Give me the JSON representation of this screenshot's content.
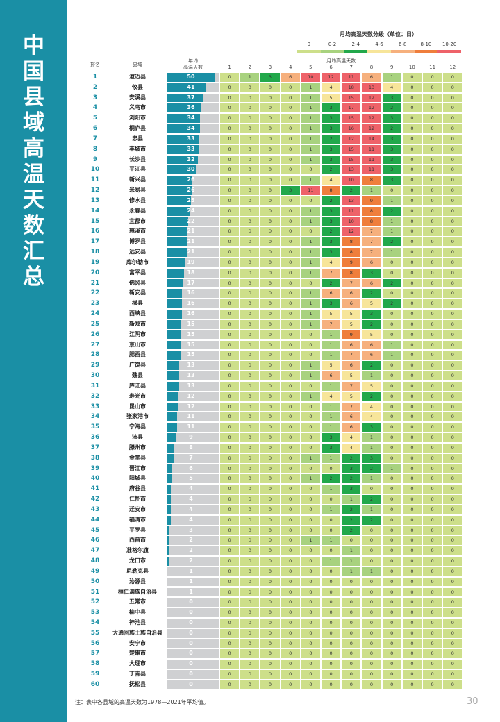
{
  "sidebar_title": "中国县域高温天数汇总",
  "legend": {
    "title": "月均高温天数分级（单位：日）",
    "grades": [
      {
        "label": "0",
        "color": "#cddf8a"
      },
      {
        "label": "0-2",
        "color": "#a8d27f"
      },
      {
        "label": "2-4",
        "color": "#22a84b"
      },
      {
        "label": "4-6",
        "color": "#f7e59a"
      },
      {
        "label": "6-8",
        "color": "#f6b07d"
      },
      {
        "label": "8-10",
        "color": "#ef7e3c"
      },
      {
        "label": "10-20",
        "color": "#ee6269"
      }
    ]
  },
  "table": {
    "headers": {
      "rank": "排名",
      "county": "县域",
      "annual": [
        "年均",
        "高温天数"
      ],
      "monthly": "月均高温天数",
      "months": [
        1,
        2,
        3,
        4,
        5,
        6,
        7,
        8,
        9,
        10,
        11,
        12
      ]
    },
    "rows": [
      {
        "rank": 1,
        "county": "澄迈县",
        "annual": 50,
        "months": [
          0,
          1,
          3,
          6,
          10,
          12,
          11,
          6,
          1,
          0,
          0,
          0
        ]
      },
      {
        "rank": 2,
        "county": "攸县",
        "annual": 41,
        "months": [
          0,
          0,
          0,
          0,
          1,
          4,
          18,
          13,
          4,
          0,
          0,
          0
        ]
      },
      {
        "rank": 3,
        "county": "安溪县",
        "annual": 37,
        "months": [
          0,
          0,
          0,
          0,
          1,
          5,
          15,
          12,
          3,
          0,
          0,
          0
        ]
      },
      {
        "rank": 4,
        "county": "义乌市",
        "annual": 36,
        "months": [
          0,
          0,
          0,
          0,
          1,
          3,
          17,
          12,
          2,
          0,
          0,
          0
        ]
      },
      {
        "rank": 5,
        "county": "浏阳市",
        "annual": 34,
        "months": [
          0,
          0,
          0,
          0,
          1,
          3,
          15,
          12,
          3,
          0,
          0,
          0
        ]
      },
      {
        "rank": 6,
        "county": "桐庐县",
        "annual": 34,
        "months": [
          0,
          0,
          0,
          0,
          1,
          3,
          16,
          12,
          2,
          0,
          0,
          0
        ]
      },
      {
        "rank": 7,
        "county": "忠县",
        "annual": 33,
        "months": [
          0,
          0,
          0,
          0,
          1,
          2,
          12,
          14,
          3,
          0,
          0,
          0
        ]
      },
      {
        "rank": 8,
        "county": "丰城市",
        "annual": 33,
        "months": [
          0,
          0,
          0,
          0,
          1,
          3,
          15,
          11,
          3,
          0,
          0,
          0
        ]
      },
      {
        "rank": 9,
        "county": "长沙县",
        "annual": 32,
        "months": [
          0,
          0,
          0,
          0,
          1,
          3,
          15,
          11,
          3,
          0,
          0,
          0
        ]
      },
      {
        "rank": 10,
        "county": "平江县",
        "annual": 30,
        "months": [
          0,
          0,
          0,
          0,
          0,
          2,
          13,
          11,
          3,
          0,
          0,
          0
        ]
      },
      {
        "rank": 11,
        "county": "新兴县",
        "annual": 26,
        "months": [
          0,
          0,
          0,
          0,
          1,
          4,
          10,
          8,
          3,
          0,
          0,
          0
        ]
      },
      {
        "rank": 12,
        "county": "米易县",
        "annual": 26,
        "months": [
          0,
          0,
          0,
          3,
          11,
          8,
          2,
          1,
          0,
          0,
          0,
          0
        ]
      },
      {
        "rank": 13,
        "county": "修水县",
        "annual": 25,
        "months": [
          0,
          0,
          0,
          0,
          0,
          2,
          13,
          9,
          1,
          0,
          0,
          0
        ]
      },
      {
        "rank": 14,
        "county": "永春县",
        "annual": 24,
        "months": [
          0,
          0,
          0,
          0,
          1,
          3,
          11,
          8,
          2,
          0,
          0,
          0
        ]
      },
      {
        "rank": 15,
        "county": "宜都市",
        "annual": 22,
        "months": [
          0,
          0,
          0,
          0,
          1,
          3,
          10,
          8,
          1,
          0,
          0,
          0
        ]
      },
      {
        "rank": 16,
        "county": "慈溪市",
        "annual": 21,
        "months": [
          0,
          0,
          0,
          0,
          0,
          2,
          12,
          7,
          1,
          0,
          0,
          0
        ]
      },
      {
        "rank": 17,
        "county": "博罗县",
        "annual": 21,
        "months": [
          0,
          0,
          0,
          0,
          1,
          3,
          8,
          7,
          2,
          0,
          0,
          0
        ]
      },
      {
        "rank": 18,
        "county": "远安县",
        "annual": 21,
        "months": [
          0,
          0,
          0,
          0,
          1,
          3,
          8,
          7,
          1,
          0,
          0,
          0
        ]
      },
      {
        "rank": 19,
        "county": "库尔勒市",
        "annual": 19,
        "months": [
          0,
          0,
          0,
          0,
          1,
          4,
          9,
          6,
          0,
          0,
          0,
          0
        ]
      },
      {
        "rank": 20,
        "county": "富平县",
        "annual": 18,
        "months": [
          0,
          0,
          0,
          0,
          1,
          7,
          8,
          3,
          0,
          0,
          0,
          0
        ]
      },
      {
        "rank": 21,
        "county": "佛冈县",
        "annual": 17,
        "months": [
          0,
          0,
          0,
          0,
          0,
          2,
          7,
          6,
          2,
          0,
          0,
          0
        ]
      },
      {
        "rank": 22,
        "county": "新安县",
        "annual": 16,
        "months": [
          0,
          0,
          0,
          0,
          1,
          6,
          6,
          2,
          0,
          0,
          0,
          0
        ]
      },
      {
        "rank": 23,
        "county": "横县",
        "annual": 16,
        "months": [
          0,
          0,
          0,
          0,
          1,
          3,
          6,
          5,
          2,
          0,
          0,
          0
        ]
      },
      {
        "rank": 24,
        "county": "西峡县",
        "annual": 16,
        "months": [
          0,
          0,
          0,
          0,
          1,
          5,
          5,
          3,
          0,
          0,
          0,
          0
        ]
      },
      {
        "rank": 25,
        "county": "新郑市",
        "annual": 15,
        "months": [
          0,
          0,
          0,
          0,
          1,
          7,
          5,
          2,
          0,
          0,
          0,
          0
        ]
      },
      {
        "rank": 26,
        "county": "江阴市",
        "annual": 15,
        "months": [
          0,
          0,
          0,
          0,
          0,
          1,
          9,
          5,
          0,
          0,
          0,
          0
        ]
      },
      {
        "rank": 27,
        "county": "京山市",
        "annual": 15,
        "months": [
          0,
          0,
          0,
          0,
          0,
          1,
          6,
          6,
          1,
          0,
          0,
          0
        ]
      },
      {
        "rank": 28,
        "county": "肥西县",
        "annual": 15,
        "months": [
          0,
          0,
          0,
          0,
          0,
          1,
          7,
          6,
          1,
          0,
          0,
          0
        ]
      },
      {
        "rank": 29,
        "county": "广饶县",
        "annual": 13,
        "months": [
          0,
          0,
          0,
          0,
          1,
          5,
          6,
          2,
          0,
          0,
          0,
          0
        ]
      },
      {
        "rank": 30,
        "county": "魏县",
        "annual": 13,
        "months": [
          0,
          0,
          0,
          0,
          1,
          6,
          5,
          1,
          0,
          0,
          0,
          0
        ]
      },
      {
        "rank": 31,
        "county": "庐江县",
        "annual": 13,
        "months": [
          0,
          0,
          0,
          0,
          0,
          1,
          7,
          5,
          0,
          0,
          0,
          0
        ]
      },
      {
        "rank": 32,
        "county": "寿光市",
        "annual": 12,
        "months": [
          0,
          0,
          0,
          0,
          1,
          4,
          5,
          2,
          0,
          0,
          0,
          0
        ]
      },
      {
        "rank": 33,
        "county": "昆山市",
        "annual": 12,
        "months": [
          0,
          0,
          0,
          0,
          0,
          1,
          7,
          4,
          0,
          0,
          0,
          0
        ]
      },
      {
        "rank": 34,
        "county": "张家港市",
        "annual": 11,
        "months": [
          0,
          0,
          0,
          0,
          0,
          1,
          6,
          4,
          0,
          0,
          0,
          0
        ]
      },
      {
        "rank": 35,
        "county": "宁海县",
        "annual": 11,
        "months": [
          0,
          0,
          0,
          0,
          0,
          1,
          6,
          3,
          0,
          0,
          0,
          0
        ]
      },
      {
        "rank": 36,
        "county": "沛县",
        "annual": 9,
        "months": [
          0,
          0,
          0,
          0,
          0,
          3,
          4,
          1,
          0,
          0,
          0,
          0
        ]
      },
      {
        "rank": 37,
        "county": "滕州市",
        "annual": 8,
        "months": [
          0,
          0,
          0,
          0,
          0,
          3,
          4,
          1,
          0,
          0,
          0,
          0
        ]
      },
      {
        "rank": 38,
        "county": "金堂县",
        "annual": 7,
        "months": [
          0,
          0,
          0,
          0,
          1,
          1,
          2,
          3,
          0,
          0,
          0,
          0
        ]
      },
      {
        "rank": 39,
        "county": "晋江市",
        "annual": 6,
        "months": [
          0,
          0,
          0,
          0,
          0,
          0,
          3,
          2,
          1,
          0,
          0,
          0
        ]
      },
      {
        "rank": 40,
        "county": "阳城县",
        "annual": 5,
        "months": [
          0,
          0,
          0,
          0,
          1,
          2,
          2,
          1,
          0,
          0,
          0,
          0
        ]
      },
      {
        "rank": 41,
        "county": "府谷县",
        "annual": 4,
        "months": [
          0,
          0,
          0,
          0,
          0,
          1,
          3,
          0,
          0,
          0,
          0,
          0
        ]
      },
      {
        "rank": 42,
        "county": "仁怀市",
        "annual": 4,
        "months": [
          0,
          0,
          0,
          0,
          0,
          0,
          1,
          2,
          0,
          0,
          0,
          0
        ]
      },
      {
        "rank": 43,
        "county": "迁安市",
        "annual": 4,
        "months": [
          0,
          0,
          0,
          0,
          0,
          1,
          2,
          1,
          0,
          0,
          0,
          0
        ]
      },
      {
        "rank": 44,
        "county": "福清市",
        "annual": 4,
        "months": [
          0,
          0,
          0,
          0,
          0,
          0,
          2,
          2,
          0,
          0,
          0,
          0
        ]
      },
      {
        "rank": 45,
        "county": "平罗县",
        "annual": 3,
        "months": [
          0,
          0,
          0,
          0,
          0,
          0,
          2,
          0,
          0,
          0,
          0,
          0
        ]
      },
      {
        "rank": 46,
        "county": "西昌市",
        "annual": 2,
        "months": [
          0,
          0,
          0,
          0,
          1,
          1,
          0,
          0,
          0,
          0,
          0,
          0
        ]
      },
      {
        "rank": 47,
        "county": "准格尔旗",
        "annual": 2,
        "months": [
          0,
          0,
          0,
          0,
          0,
          0,
          1,
          0,
          0,
          0,
          0,
          0
        ]
      },
      {
        "rank": 48,
        "county": "龙口市",
        "annual": 2,
        "months": [
          0,
          0,
          0,
          0,
          0,
          1,
          1,
          0,
          0,
          0,
          0,
          0
        ]
      },
      {
        "rank": 49,
        "county": "尼勒克县",
        "annual": 1,
        "months": [
          0,
          0,
          0,
          0,
          0,
          0,
          1,
          1,
          0,
          0,
          0,
          0
        ]
      },
      {
        "rank": 50,
        "county": "沁源县",
        "annual": 1,
        "months": [
          0,
          0,
          0,
          0,
          0,
          0,
          0,
          0,
          0,
          0,
          0,
          0
        ]
      },
      {
        "rank": 51,
        "county": "桓仁满族自治县",
        "annual": 1,
        "months": [
          0,
          0,
          0,
          0,
          0,
          0,
          0,
          0,
          0,
          0,
          0,
          0
        ]
      },
      {
        "rank": 52,
        "county": "五常市",
        "annual": 0,
        "months": [
          0,
          0,
          0,
          0,
          0,
          0,
          0,
          0,
          0,
          0,
          0,
          0
        ]
      },
      {
        "rank": 53,
        "county": "榆中县",
        "annual": 0,
        "months": [
          0,
          0,
          0,
          0,
          0,
          0,
          0,
          0,
          0,
          0,
          0,
          0
        ]
      },
      {
        "rank": 54,
        "county": "神池县",
        "annual": 0,
        "months": [
          0,
          0,
          0,
          0,
          0,
          0,
          0,
          0,
          0,
          0,
          0,
          0
        ]
      },
      {
        "rank": 55,
        "county": "大通回族土族自治县",
        "annual": 0,
        "months": [
          0,
          0,
          0,
          0,
          0,
          0,
          0,
          0,
          0,
          0,
          0,
          0
        ]
      },
      {
        "rank": 56,
        "county": "安宁市",
        "annual": 0,
        "months": [
          0,
          0,
          0,
          0,
          0,
          0,
          0,
          0,
          0,
          0,
          0,
          0
        ]
      },
      {
        "rank": 57,
        "county": "楚雄市",
        "annual": 0,
        "months": [
          0,
          0,
          0,
          0,
          0,
          0,
          0,
          0,
          0,
          0,
          0,
          0
        ]
      },
      {
        "rank": 58,
        "county": "大理市",
        "annual": 0,
        "months": [
          0,
          0,
          0,
          0,
          0,
          0,
          0,
          0,
          0,
          0,
          0,
          0
        ]
      },
      {
        "rank": 59,
        "county": "丁青县",
        "annual": 0,
        "months": [
          0,
          0,
          0,
          0,
          0,
          0,
          0,
          0,
          0,
          0,
          0,
          0
        ]
      },
      {
        "rank": 60,
        "county": "抚松县",
        "annual": 0,
        "months": [
          0,
          0,
          0,
          0,
          0,
          0,
          0,
          0,
          0,
          0,
          0,
          0
        ]
      }
    ]
  },
  "note": "注：表中各县域的高温天数为1978—2021年平均值。",
  "page_number": 30
}
